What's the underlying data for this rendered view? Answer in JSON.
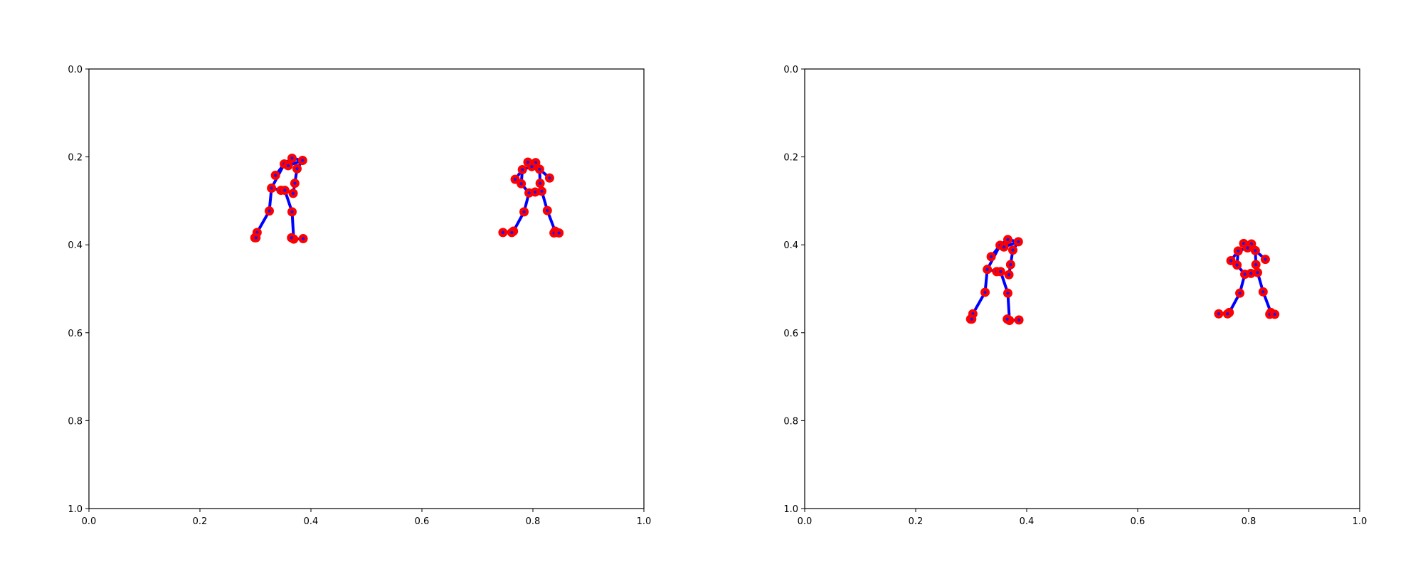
{
  "colors": {
    "skeleton": "#0000ff",
    "joint": "#ff0000",
    "joint_center": "#1a1aee",
    "axes": "#000000",
    "background": "#ffffff"
  },
  "chart_data": [
    {
      "type": "scatter",
      "title": "",
      "xlabel": "",
      "ylabel": "",
      "xlim": [
        0.0,
        1.0
      ],
      "ylim": [
        1.0,
        0.0
      ],
      "y_inverted": true,
      "grid": false,
      "xticks": [
        "0.0",
        "0.2",
        "0.4",
        "0.6",
        "0.8",
        "1.0"
      ],
      "yticks": [
        "0.0",
        "0.2",
        "0.4",
        "0.6",
        "0.8",
        "1.0"
      ],
      "series": [
        {
          "joints": [
            [
              0.366,
              0.203
            ],
            [
              0.385,
              0.208
            ],
            [
              0.352,
              0.216
            ],
            [
              0.375,
              0.227
            ],
            [
              0.336,
              0.242
            ],
            [
              0.371,
              0.26
            ],
            [
              0.368,
              0.283
            ],
            [
              0.329,
              0.271
            ],
            [
              0.346,
              0.276
            ],
            [
              0.353,
              0.276
            ],
            [
              0.366,
              0.325
            ],
            [
              0.325,
              0.323
            ],
            [
              0.303,
              0.372
            ],
            [
              0.299,
              0.384
            ],
            [
              0.301,
              0.384
            ],
            [
              0.369,
              0.387
            ],
            [
              0.365,
              0.384
            ],
            [
              0.386,
              0.386
            ],
            [
              0.359,
              0.22
            ]
          ],
          "bones": [
            [
              0,
              1
            ],
            [
              0,
              2
            ],
            [
              1,
              3
            ],
            [
              2,
              4
            ],
            [
              2,
              7
            ],
            [
              3,
              5
            ],
            [
              5,
              6
            ],
            [
              7,
              8
            ],
            [
              8,
              9
            ],
            [
              9,
              10
            ],
            [
              7,
              11
            ],
            [
              11,
              12
            ],
            [
              12,
              13
            ],
            [
              12,
              14
            ],
            [
              10,
              15
            ],
            [
              15,
              16
            ],
            [
              15,
              17
            ],
            [
              2,
              18
            ],
            [
              18,
              1
            ],
            [
              0,
              18
            ]
          ]
        },
        {
          "joints": [
            [
              0.791,
              0.212
            ],
            [
              0.805,
              0.213
            ],
            [
              0.781,
              0.229
            ],
            [
              0.812,
              0.228
            ],
            [
              0.768,
              0.251
            ],
            [
              0.83,
              0.248
            ],
            [
              0.779,
              0.261
            ],
            [
              0.813,
              0.26
            ],
            [
              0.793,
              0.282
            ],
            [
              0.804,
              0.28
            ],
            [
              0.816,
              0.278
            ],
            [
              0.784,
              0.325
            ],
            [
              0.826,
              0.322
            ],
            [
              0.765,
              0.369
            ],
            [
              0.762,
              0.372
            ],
            [
              0.746,
              0.372
            ],
            [
              0.84,
              0.369
            ],
            [
              0.838,
              0.373
            ],
            [
              0.847,
              0.373
            ],
            [
              0.798,
              0.222
            ]
          ],
          "bones": [
            [
              0,
              1
            ],
            [
              0,
              19
            ],
            [
              1,
              19
            ],
            [
              19,
              2
            ],
            [
              19,
              3
            ],
            [
              2,
              4
            ],
            [
              3,
              5
            ],
            [
              2,
              6
            ],
            [
              3,
              7
            ],
            [
              6,
              8
            ],
            [
              7,
              10
            ],
            [
              8,
              9
            ],
            [
              9,
              10
            ],
            [
              8,
              11
            ],
            [
              10,
              12
            ],
            [
              11,
              13
            ],
            [
              13,
              14
            ],
            [
              13,
              15
            ],
            [
              12,
              16
            ],
            [
              16,
              17
            ],
            [
              16,
              18
            ]
          ]
        }
      ]
    },
    {
      "type": "scatter",
      "title": "",
      "xlabel": "",
      "ylabel": "",
      "xlim": [
        0.0,
        1.0
      ],
      "ylim": [
        1.0,
        0.0
      ],
      "y_inverted": true,
      "grid": false,
      "xticks": [
        "0.0",
        "0.2",
        "0.4",
        "0.6",
        "0.8",
        "1.0"
      ],
      "yticks": [
        "0.0",
        "0.2",
        "0.4",
        "0.6",
        "0.8",
        "1.0"
      ],
      "series": [
        {
          "joints": [
            [
              0.366,
              0.388
            ],
            [
              0.385,
              0.393
            ],
            [
              0.352,
              0.401
            ],
            [
              0.375,
              0.412
            ],
            [
              0.336,
              0.427
            ],
            [
              0.371,
              0.445
            ],
            [
              0.368,
              0.468
            ],
            [
              0.329,
              0.456
            ],
            [
              0.346,
              0.461
            ],
            [
              0.353,
              0.461
            ],
            [
              0.366,
              0.51
            ],
            [
              0.325,
              0.508
            ],
            [
              0.303,
              0.557
            ],
            [
              0.299,
              0.569
            ],
            [
              0.301,
              0.569
            ],
            [
              0.369,
              0.572
            ],
            [
              0.365,
              0.569
            ],
            [
              0.386,
              0.571
            ],
            [
              0.359,
              0.405
            ]
          ],
          "bones": [
            [
              0,
              1
            ],
            [
              0,
              2
            ],
            [
              1,
              3
            ],
            [
              2,
              4
            ],
            [
              2,
              7
            ],
            [
              3,
              5
            ],
            [
              5,
              6
            ],
            [
              7,
              8
            ],
            [
              8,
              9
            ],
            [
              9,
              10
            ],
            [
              7,
              11
            ],
            [
              11,
              12
            ],
            [
              12,
              13
            ],
            [
              12,
              14
            ],
            [
              10,
              15
            ],
            [
              15,
              16
            ],
            [
              15,
              17
            ],
            [
              2,
              18
            ],
            [
              18,
              1
            ],
            [
              0,
              18
            ]
          ]
        },
        {
          "joints": [
            [
              0.791,
              0.397
            ],
            [
              0.805,
              0.398
            ],
            [
              0.781,
              0.414
            ],
            [
              0.812,
              0.413
            ],
            [
              0.768,
              0.436
            ],
            [
              0.83,
              0.433
            ],
            [
              0.779,
              0.446
            ],
            [
              0.813,
              0.445
            ],
            [
              0.793,
              0.467
            ],
            [
              0.804,
              0.465
            ],
            [
              0.816,
              0.463
            ],
            [
              0.784,
              0.51
            ],
            [
              0.826,
              0.507
            ],
            [
              0.765,
              0.554
            ],
            [
              0.762,
              0.557
            ],
            [
              0.746,
              0.557
            ],
            [
              0.84,
              0.554
            ],
            [
              0.838,
              0.558
            ],
            [
              0.847,
              0.558
            ],
            [
              0.798,
              0.407
            ]
          ],
          "bones": [
            [
              0,
              1
            ],
            [
              0,
              19
            ],
            [
              1,
              19
            ],
            [
              19,
              2
            ],
            [
              19,
              3
            ],
            [
              2,
              4
            ],
            [
              3,
              5
            ],
            [
              2,
              6
            ],
            [
              3,
              7
            ],
            [
              6,
              8
            ],
            [
              7,
              10
            ],
            [
              8,
              9
            ],
            [
              9,
              10
            ],
            [
              8,
              11
            ],
            [
              10,
              12
            ],
            [
              11,
              13
            ],
            [
              13,
              14
            ],
            [
              13,
              15
            ],
            [
              12,
              16
            ],
            [
              16,
              17
            ],
            [
              16,
              18
            ]
          ]
        }
      ]
    }
  ]
}
